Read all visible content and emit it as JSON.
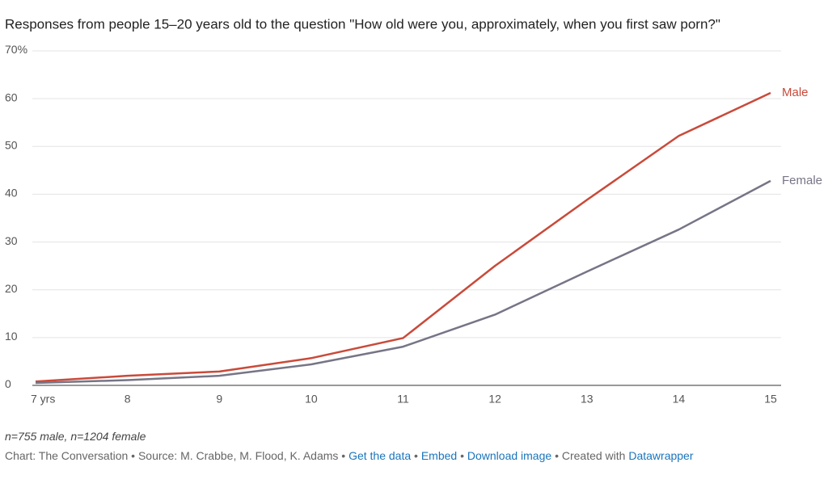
{
  "chart_data": {
    "type": "line",
    "subtitle": "Responses from people 15–20 years old to the question \"How old were you, approximately, when you first saw porn?\"",
    "categories": [
      "7 yrs",
      "8",
      "9",
      "10",
      "11",
      "12",
      "13",
      "14",
      "15"
    ],
    "series": [
      {
        "name": "Male",
        "color": "#c94a3a",
        "values": [
          0.8,
          2,
          2.9,
          5.7,
          9.9,
          25,
          38.8,
          52.2,
          61.2
        ]
      },
      {
        "name": "Female",
        "color": "#767586",
        "values": [
          0.5,
          1.1,
          2,
          4.4,
          8.1,
          14.8,
          23.8,
          32.6,
          42.8
        ]
      }
    ],
    "ylim": [
      0,
      70
    ],
    "yticks": [
      0,
      10,
      20,
      30,
      40,
      50,
      60,
      {
        "value": 70,
        "label": "70%"
      }
    ],
    "grid": true,
    "note": "n=755 male, n=1204 female",
    "footer": {
      "credit": "Chart: The Conversation",
      "separator": "•",
      "source": "Source: M. Crabbe, M. Flood, K. Adams",
      "links": [
        "Get the data",
        "Embed",
        "Download image"
      ],
      "created": "Created with",
      "tool": "Datawrapper"
    }
  }
}
